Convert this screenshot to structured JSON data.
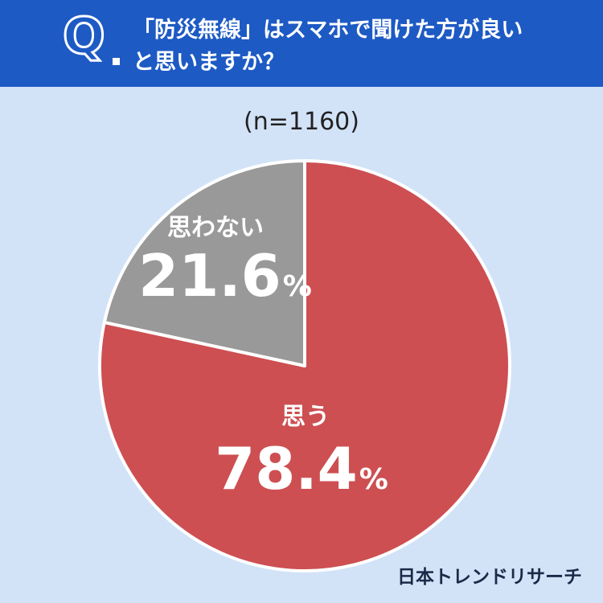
{
  "header": {
    "q_mark": "Q",
    "question_line1": "「防災無線」はスマホで聞けた方が良い",
    "question_line2": "と思いますか？"
  },
  "sample_size": "(n=1160)",
  "brand": "日本トレンドリサーチ",
  "colors": {
    "header": "#1d5ac4",
    "background": "#d2e3f7",
    "yes": "#cd4f52",
    "no": "#999999"
  },
  "chart_data": {
    "type": "pie",
    "title": "「防災無線」はスマホで聞けた方が良いと思いますか？",
    "subtitle": "(n=1160)",
    "slices": [
      {
        "label": "思う",
        "value": 78.4,
        "display": "78.4",
        "unit": "%",
        "color": "#cd4f52"
      },
      {
        "label": "思わない",
        "value": 21.6,
        "display": "21.6",
        "unit": "%",
        "color": "#999999"
      }
    ],
    "start": "12 o'clock",
    "direction": "clockwise"
  }
}
